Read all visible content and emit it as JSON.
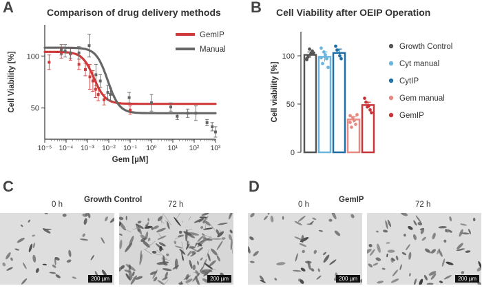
{
  "panel_a": {
    "letter": "A",
    "title": "Comparison of drug delivery methods",
    "legend": [
      {
        "label": "GemIP",
        "color": "#d03a3a"
      },
      {
        "label": "Manual",
        "color": "#666666"
      }
    ]
  },
  "panel_b": {
    "letter": "B",
    "title": "Cell Viability after OEIP Operation",
    "legend": [
      {
        "label": "Growth Control",
        "color": "#555555"
      },
      {
        "label": "Cyt manual",
        "color": "#6ab4de"
      },
      {
        "label": "CytIP",
        "color": "#1f6fa6"
      },
      {
        "label": "Gem manual",
        "color": "#e88a82"
      },
      {
        "label": "GemIP",
        "color": "#c8353a"
      }
    ]
  },
  "panel_c": {
    "letter": "C",
    "title": "Growth Control",
    "time_labels": [
      "0 h",
      "72 h"
    ],
    "scale_bar": "200 µm"
  },
  "panel_d": {
    "letter": "D",
    "title": "GemIP",
    "time_labels": [
      "0 h",
      "72 h"
    ],
    "scale_bar": "200 µm"
  },
  "chart_data": [
    {
      "type": "scatter",
      "title": "Comparison of drug delivery methods",
      "xlabel": "Gem [µM]",
      "ylabel": "Cell Viability [%]",
      "xscale": "log",
      "xlim": [
        1e-05,
        1000
      ],
      "ylim": [
        20,
        130
      ],
      "xticks": [
        "10⁻⁵",
        "10⁻⁴",
        "10⁻³",
        "10⁻²",
        "10⁻¹",
        "10⁰",
        "10¹",
        "10²",
        "10³"
      ],
      "yticks": [
        50,
        100
      ],
      "legend_position": "top-right",
      "series": [
        {
          "name": "GemIP",
          "color": "#d03a3a",
          "fit": {
            "top": 104,
            "bottom": 54,
            "logIC50": -2.7,
            "hill": 1.6
          },
          "points": [
            {
              "x": 1.6e-05,
              "y": 94,
              "err": 7
            },
            {
              "x": 6e-05,
              "y": 103,
              "err": 5
            },
            {
              "x": 0.00016,
              "y": 102,
              "err": 6
            },
            {
              "x": 0.0004,
              "y": 92,
              "err": 5
            },
            {
              "x": 0.0008,
              "y": 87,
              "err": 6
            },
            {
              "x": 0.0013,
              "y": 80,
              "err": 12
            },
            {
              "x": 0.0018,
              "y": 76,
              "err": 10
            },
            {
              "x": 0.0024,
              "y": 68,
              "err": 8
            },
            {
              "x": 0.0032,
              "y": 63,
              "err": 6
            },
            {
              "x": 0.006,
              "y": 58,
              "err": 5
            },
            {
              "x": 0.1,
              "y": 48,
              "err": 4
            }
          ]
        },
        {
          "name": "Manual",
          "color": "#666666",
          "fit": {
            "top": 108,
            "bottom": 45,
            "logIC50": -2.05,
            "hill": 1.6
          },
          "points": [
            {
              "x": 6e-05,
              "y": 106,
              "err": 5
            },
            {
              "x": 9e-05,
              "y": 105,
              "err": 6
            },
            {
              "x": 0.00016,
              "y": 103,
              "err": 5
            },
            {
              "x": 0.0004,
              "y": 103,
              "err": 6
            },
            {
              "x": 0.0012,
              "y": 110,
              "err": 11
            },
            {
              "x": 0.0025,
              "y": 82,
              "err": 10
            },
            {
              "x": 0.004,
              "y": 76,
              "err": 6
            },
            {
              "x": 0.009,
              "y": 65,
              "err": 7
            },
            {
              "x": 0.012,
              "y": 63,
              "err": 6
            },
            {
              "x": 0.09,
              "y": 60,
              "err": 5
            },
            {
              "x": 1,
              "y": 55,
              "err": 8
            },
            {
              "x": 8,
              "y": 51,
              "err": 4
            },
            {
              "x": 16,
              "y": 42,
              "err": 3
            },
            {
              "x": 50,
              "y": 45,
              "err": 4
            },
            {
              "x": 120,
              "y": 45,
              "err": 7
            },
            {
              "x": 400,
              "y": 36,
              "err": 3
            },
            {
              "x": 700,
              "y": 32,
              "err": 4
            },
            {
              "x": 1000,
              "y": 27,
              "err": 5
            }
          ]
        }
      ]
    },
    {
      "type": "bar",
      "title": "Cell Viability after OEIP Operation",
      "ylabel": "Cell viability [%]",
      "ylim": [
        0,
        125
      ],
      "yticks": [
        0,
        50,
        100
      ],
      "legend_position": "right",
      "categories": [
        "Growth Control",
        "Cyt manual",
        "CytIP",
        "Gem manual",
        "GemIP"
      ],
      "colors": [
        "#555555",
        "#6ab4de",
        "#1f6fa6",
        "#e88a82",
        "#c8353a"
      ],
      "values": [
        101,
        99,
        103,
        34,
        49
      ],
      "errors": [
        3,
        5,
        4,
        3,
        3
      ],
      "points": [
        [
          97,
          102,
          105,
          99,
          107,
          103,
          96
        ],
        [
          108,
          101,
          97,
          92,
          104,
          88,
          98
        ],
        [
          110,
          100,
          97,
          106
        ],
        [
          38,
          33,
          29,
          26,
          36,
          39,
          31
        ],
        [
          56,
          48,
          44,
          52,
          47,
          41
        ]
      ]
    }
  ]
}
